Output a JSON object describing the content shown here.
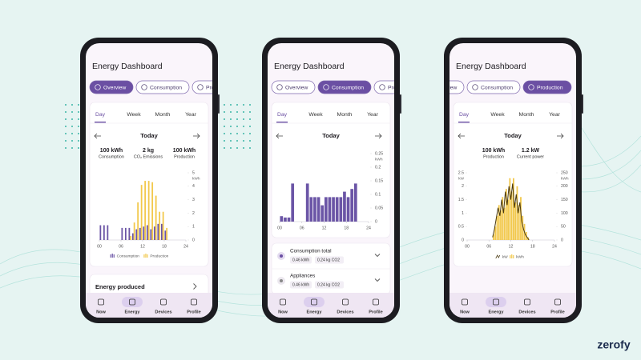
{
  "brand": "zerofy",
  "nav": [
    "Now",
    "Energy",
    "Devices",
    "Profile"
  ],
  "active_nav": 1,
  "phones": [
    {
      "title": "Energy Dashboard",
      "tabs": [
        "Overview",
        "Consumption",
        "Production"
      ],
      "active_tab": 0,
      "periods": [
        "Day",
        "Week",
        "Month",
        "Year"
      ],
      "active_period": 0,
      "date": "Today",
      "stats": [
        {
          "value": "100 kWh",
          "label": "Consumption"
        },
        {
          "value": "2 kg",
          "label": "CO₂ Emissions"
        },
        {
          "value": "100 kWh",
          "label": "Production"
        }
      ],
      "chart": {
        "type": "bar",
        "x": [
          0,
          1,
          2,
          3,
          4,
          5,
          6,
          7,
          8,
          9,
          10,
          11,
          12,
          13,
          14,
          15,
          16,
          17,
          18,
          19,
          20,
          21,
          22,
          23
        ],
        "xlim": [
          0,
          24
        ],
        "xticks": [
          {
            "value": 0,
            "label": "00"
          },
          {
            "value": 6,
            "label": "06"
          },
          {
            "value": 12,
            "label": "12"
          },
          {
            "value": 18,
            "label": "18"
          },
          {
            "value": 24,
            "label": "24"
          }
        ],
        "ylim": [
          0,
          5
        ],
        "yticks": [
          0,
          1,
          2,
          3,
          4,
          5
        ],
        "y_unit": "kWh",
        "legend": true,
        "series": [
          {
            "name": "Consumption",
            "color": "#6b55a6",
            "values": [
              1.1,
              1.1,
              1.1,
              0,
              0,
              0,
              0.9,
              0.9,
              0.9,
              0.5,
              0.8,
              0.9,
              1.0,
              1.1,
              0.8,
              1.0,
              1.2,
              1.2,
              0.7,
              0,
              0,
              0,
              0,
              0
            ]
          },
          {
            "name": "Production",
            "color": "#f2c84b",
            "values": [
              0,
              0,
              0,
              0,
              0,
              0,
              0,
              0,
              0.3,
              1.3,
              2.8,
              4.1,
              4.4,
              4.4,
              4.3,
              3.3,
              2.1,
              2.1,
              0.9,
              0,
              0,
              0,
              0,
              0
            ]
          }
        ]
      },
      "section": "Energy produced"
    },
    {
      "title": "Energy Dashboard",
      "tabs": [
        "Overview",
        "Consumption",
        "Production"
      ],
      "active_tab": 1,
      "periods": [
        "Day",
        "Week",
        "Month",
        "Year"
      ],
      "active_period": 0,
      "date": "Today",
      "chart": {
        "type": "bar",
        "x": [
          0,
          1,
          2,
          3,
          4,
          5,
          6,
          7,
          8,
          9,
          10,
          11,
          12,
          13,
          14,
          15,
          16,
          17,
          18,
          19,
          20,
          21,
          22,
          23
        ],
        "xlim": [
          0,
          24
        ],
        "xticks": [
          {
            "value": 0,
            "label": "00"
          },
          {
            "value": 6,
            "label": "06"
          },
          {
            "value": 12,
            "label": "12"
          },
          {
            "value": 18,
            "label": "18"
          },
          {
            "value": 24,
            "label": "24"
          }
        ],
        "ylim": [
          0,
          0.25
        ],
        "yticks": [
          0,
          0.05,
          0.1,
          0.15,
          0.2,
          0.25
        ],
        "y_unit": "kWh",
        "legend": false,
        "series": [
          {
            "color": "#6b55a6",
            "values": [
              0.02,
              0.015,
              0.015,
              0.14,
              0,
              0,
              0,
              0.14,
              0.09,
              0.09,
              0.09,
              0.06,
              0.09,
              0.09,
              0.09,
              0.09,
              0.09,
              0.11,
              0.09,
              0.12,
              0.14,
              0,
              0,
              0
            ]
          }
        ]
      },
      "list": [
        {
          "name": "Consumption total",
          "chips": [
            "0.46 kWh",
            "0.24 kg CO2"
          ]
        },
        {
          "name": "Appliances",
          "chips": [
            "0.46 kWh",
            "0.24 kg CO2"
          ]
        }
      ]
    },
    {
      "title": "Energy Dashboard",
      "tabs": [
        "Overview",
        "Consumption",
        "Production"
      ],
      "active_tab": 2,
      "periods": [
        "Day",
        "Week",
        "Month",
        "Year"
      ],
      "active_period": 0,
      "date": "Today",
      "stats": [
        {
          "value": "100 kWh",
          "label": "Production"
        },
        {
          "value": "1.2 kW",
          "label": "Current power"
        }
      ],
      "chart": {
        "type": "bar",
        "x": [
          7,
          7.5,
          8,
          8.5,
          9,
          9.5,
          10,
          10.5,
          11,
          11.5,
          12,
          12.5,
          13,
          13.5,
          14,
          14.5,
          15,
          15.5,
          16,
          16.5,
          17
        ],
        "xlim": [
          0,
          24
        ],
        "xticks": [
          {
            "value": 0,
            "label": "00"
          },
          {
            "value": 6,
            "label": "06"
          },
          {
            "value": 12,
            "label": "12"
          },
          {
            "value": 18,
            "label": "18"
          },
          {
            "value": 24,
            "label": "24"
          }
        ],
        "ylim": [
          0,
          2.5
        ],
        "yticks": [
          0,
          0.5,
          1,
          1.5,
          2,
          2.5
        ],
        "y_unit": "kW",
        "y2lim": [
          0,
          250
        ],
        "y2ticks": [
          0,
          50,
          100,
          150,
          200,
          250
        ],
        "y2_unit": "kWh",
        "legend": true,
        "series": [
          {
            "name": "kW",
            "type": "line",
            "color": "#4a3a12",
            "values": [
              0.1,
              0.4,
              0.8,
              1.2,
              0.9,
              1.5,
              1.0,
              1.8,
              1.3,
              2.0,
              1.5,
              2.1,
              1.2,
              1.7,
              1.0,
              1.4,
              0.7,
              0.4,
              0.2,
              0.1,
              0
            ]
          },
          {
            "name": "kWh",
            "axis": "y2",
            "color": "#f2c84b",
            "values": [
              20,
              50,
              90,
              130,
              110,
              160,
              120,
              190,
              150,
              230,
              180,
              230,
              140,
              200,
              130,
              160,
              90,
              60,
              30,
              10,
              0
            ]
          }
        ]
      }
    }
  ]
}
